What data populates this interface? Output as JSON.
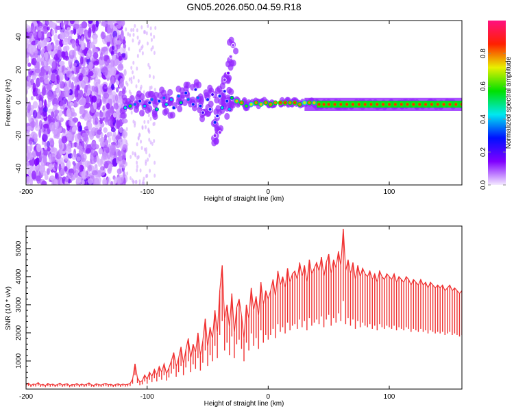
{
  "title": "GN05.2026.050.04.59.R18",
  "chart_data": [
    {
      "type": "heatmap",
      "title": "GN05.2026.050.04.59.R18",
      "xlabel": "Height of straight line (km)",
      "ylabel": "Frequency (Hz)",
      "xlim": [
        -200,
        160
      ],
      "ylim": [
        -50,
        50
      ],
      "xticks": [
        -200,
        -100,
        0,
        100
      ],
      "yticks": [
        -40,
        -20,
        0,
        20,
        40
      ],
      "colorbar": {
        "label": "Normalized spectral amplitude",
        "range": [
          0,
          1
        ],
        "ticks": [
          "0.0",
          "0.2",
          "0.4",
          "0.6",
          "0.8"
        ],
        "tick_values": [
          0,
          0.2,
          0.4,
          0.6,
          0.8
        ],
        "colors": [
          "#f4eaff",
          "#8000ff",
          "#0010ff",
          "#00e8f0",
          "#00e000",
          "#e8f000",
          "#ff2000",
          "#ff1080"
        ]
      },
      "noise_region": {
        "x_range": [
          -200,
          -118
        ],
        "freq_range": [
          -50,
          50
        ],
        "amplitude": [
          0.03,
          0.15
        ]
      },
      "ridge_points": [
        [
          -118,
          -3,
          0.45
        ],
        [
          -114,
          -2,
          0.6
        ],
        [
          -110,
          -1,
          0.35
        ],
        [
          -106,
          1,
          0.3
        ],
        [
          -102,
          -2,
          0.4
        ],
        [
          -98,
          0,
          0.3
        ],
        [
          -96,
          2,
          0.35
        ],
        [
          -92,
          -4,
          0.5
        ],
        [
          -90,
          1,
          0.3
        ],
        [
          -86,
          3,
          0.35
        ],
        [
          -84,
          -1,
          0.45
        ],
        [
          -80,
          2,
          0.4
        ],
        [
          -78,
          -3,
          0.3
        ],
        [
          -74,
          4,
          0.35
        ],
        [
          -72,
          0,
          0.5
        ],
        [
          -68,
          6,
          0.3
        ],
        [
          -66,
          2,
          0.35
        ],
        [
          -62,
          -1,
          0.3
        ],
        [
          -60,
          8,
          0.25
        ],
        [
          -58,
          3,
          0.35
        ],
        [
          -56,
          -2,
          0.3
        ],
        [
          -54,
          -6,
          0.2
        ],
        [
          -50,
          2,
          0.3
        ],
        [
          -48,
          -4,
          0.25
        ],
        [
          -46,
          5,
          0.2
        ],
        [
          -44,
          -12,
          0.3
        ],
        [
          -42,
          -8,
          0.25
        ],
        [
          -40,
          4,
          0.3
        ],
        [
          -38,
          -3,
          0.45
        ],
        [
          -36,
          7,
          0.25
        ],
        [
          -34,
          1,
          0.3
        ],
        [
          -33,
          18,
          0.15
        ],
        [
          -31,
          28,
          0.1
        ],
        [
          -29,
          35,
          0.1
        ],
        [
          -36,
          14,
          0.12
        ],
        [
          -40,
          -18,
          0.12
        ],
        [
          -44,
          -20,
          0.12
        ],
        [
          -32,
          -4,
          0.4
        ],
        [
          -30,
          3,
          0.55
        ],
        [
          -26,
          1,
          0.75
        ],
        [
          -22,
          0,
          0.8
        ],
        [
          -18,
          -2,
          0.6
        ],
        [
          -14,
          -1,
          0.7
        ],
        [
          -10,
          0,
          0.8
        ],
        [
          -6,
          -1,
          0.75
        ],
        [
          -2,
          0,
          0.8
        ],
        [
          2,
          -1,
          0.8
        ],
        [
          6,
          0,
          0.8
        ],
        [
          10,
          0,
          0.85
        ],
        [
          14,
          0,
          0.85
        ],
        [
          18,
          0,
          0.8
        ],
        [
          22,
          0,
          0.85
        ],
        [
          26,
          -1,
          0.8
        ],
        [
          30,
          0,
          0.7
        ],
        [
          34,
          0,
          0.8
        ],
        [
          38,
          0,
          0.75
        ],
        [
          42,
          -1,
          0.85
        ],
        [
          46,
          -1,
          0.85
        ],
        [
          50,
          -1,
          0.85
        ],
        [
          55,
          -1,
          0.85
        ],
        [
          60,
          -1,
          0.85
        ],
        [
          65,
          -1,
          0.85
        ],
        [
          70,
          -1,
          0.85
        ],
        [
          75,
          -1,
          0.85
        ],
        [
          80,
          -1,
          0.85
        ],
        [
          85,
          -1,
          0.85
        ],
        [
          90,
          -1,
          0.85
        ],
        [
          95,
          -1,
          0.85
        ],
        [
          100,
          -1,
          0.85
        ],
        [
          105,
          -1,
          0.85
        ],
        [
          110,
          -1,
          0.85
        ],
        [
          115,
          -1,
          0.85
        ],
        [
          120,
          -1,
          0.85
        ],
        [
          125,
          -1,
          0.85
        ],
        [
          130,
          -1,
          0.85
        ],
        [
          135,
          -1,
          0.85
        ],
        [
          140,
          -1,
          0.85
        ],
        [
          145,
          -1,
          0.85
        ],
        [
          150,
          -1,
          0.85
        ],
        [
          155,
          -1,
          0.85
        ],
        [
          160,
          -1,
          0.85
        ]
      ]
    },
    {
      "type": "line",
      "xlabel": "Height of straight line (km)",
      "ylabel": "SNR (10 * v/v)",
      "xlim": [
        -200,
        160
      ],
      "ylim": [
        0,
        5800
      ],
      "xticks": [
        -200,
        -100,
        0,
        100
      ],
      "yticks": [
        1000,
        2000,
        3000,
        4000,
        5000
      ],
      "color": "#f03030",
      "x_start": -200,
      "x_step": 2,
      "values": [
        150,
        210,
        130,
        180,
        160,
        230,
        140,
        170,
        120,
        200,
        150,
        180,
        130,
        160,
        210,
        140,
        170,
        190,
        120,
        160,
        150,
        200,
        130,
        180,
        140,
        170,
        220,
        150,
        130,
        190,
        160,
        140,
        180,
        200,
        150,
        170,
        130,
        160,
        190,
        140,
        180,
        150,
        170,
        200,
        350,
        900,
        400,
        250,
        300,
        500,
        350,
        600,
        450,
        700,
        500,
        800,
        600,
        900,
        550,
        750,
        1000,
        1300,
        800,
        1100,
        1500,
        900,
        1400,
        1800,
        1100,
        1600,
        1300,
        2000,
        1200,
        1700,
        2500,
        1500,
        2200,
        1800,
        2800,
        2000,
        3500,
        4400,
        2500,
        3000,
        2200,
        3400,
        2000,
        2900,
        3200,
        2600,
        1800,
        3000,
        2500,
        3600,
        2800,
        3300,
        2600,
        3800,
        3000,
        3500,
        3200,
        3500,
        3900,
        3300,
        4200,
        3700,
        4000,
        3600,
        4300,
        3800,
        4100,
        4200,
        3900,
        4500,
        4000,
        4400,
        3800,
        4600,
        4100,
        4300,
        4500,
        4200,
        4700,
        4000,
        4500,
        4800,
        4100,
        4600,
        4300,
        4900,
        4400,
        5700,
        4200,
        4600,
        4100,
        4500,
        3900,
        4400,
        4000,
        4300,
        4100,
        4000,
        4200,
        3900,
        4100,
        3800,
        4200,
        4000,
        3900,
        4100,
        4000,
        3900,
        4100,
        3800,
        4000,
        3900,
        3800,
        4000,
        3900,
        3700,
        3900,
        3800,
        3700,
        3900,
        3700,
        3800,
        3600,
        3800,
        3700,
        3600,
        3700,
        3600,
        3700,
        3500,
        3600,
        3700,
        3500,
        3600,
        3500,
        3400,
        3500
      ]
    }
  ]
}
